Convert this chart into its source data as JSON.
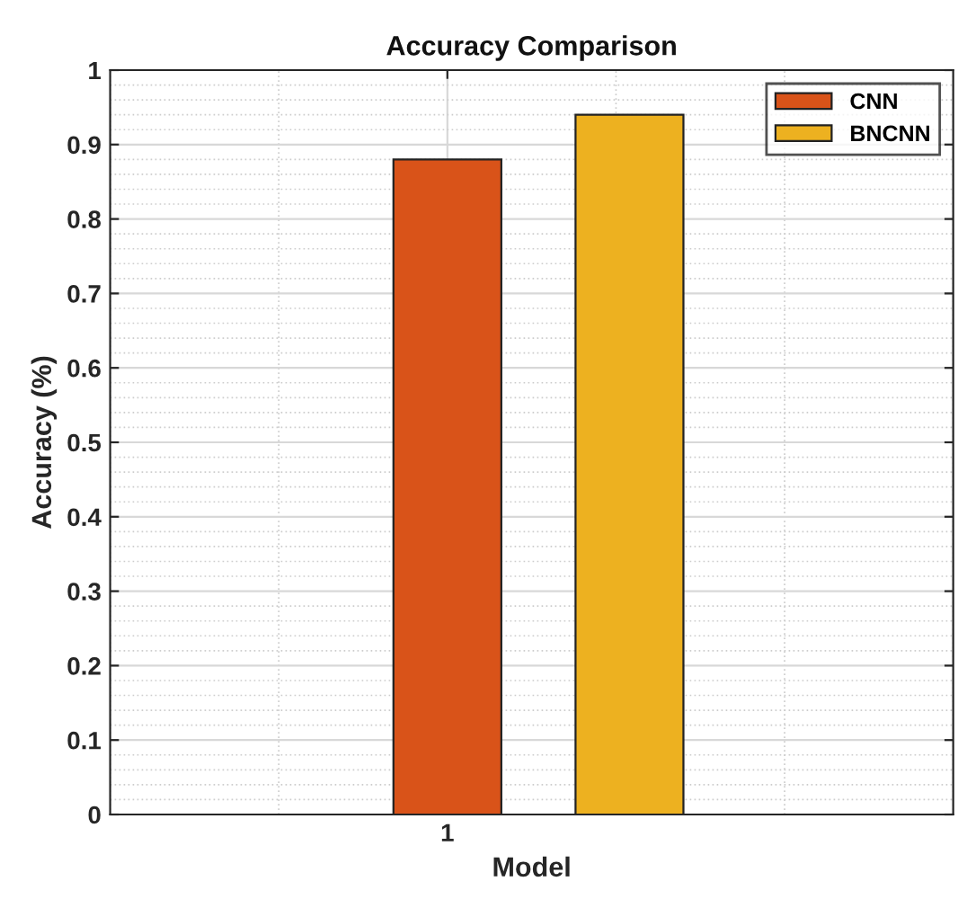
{
  "chart_data": {
    "type": "bar",
    "title": "Accuracy Comparison",
    "xlabel": "Model",
    "ylabel": "Accuracy (%)",
    "categories": [
      "1"
    ],
    "series": [
      {
        "name": "CNN",
        "color": "#d95319",
        "values": [
          0.88
        ]
      },
      {
        "name": "BNCNN",
        "color": "#edb120",
        "values": [
          0.94
        ]
      }
    ],
    "ylim": [
      0,
      1
    ],
    "yticks": [
      0,
      0.1,
      0.2,
      0.3,
      0.4,
      0.5,
      0.6,
      0.7,
      0.8,
      0.9,
      1
    ],
    "grid": true,
    "legend": "top right"
  }
}
